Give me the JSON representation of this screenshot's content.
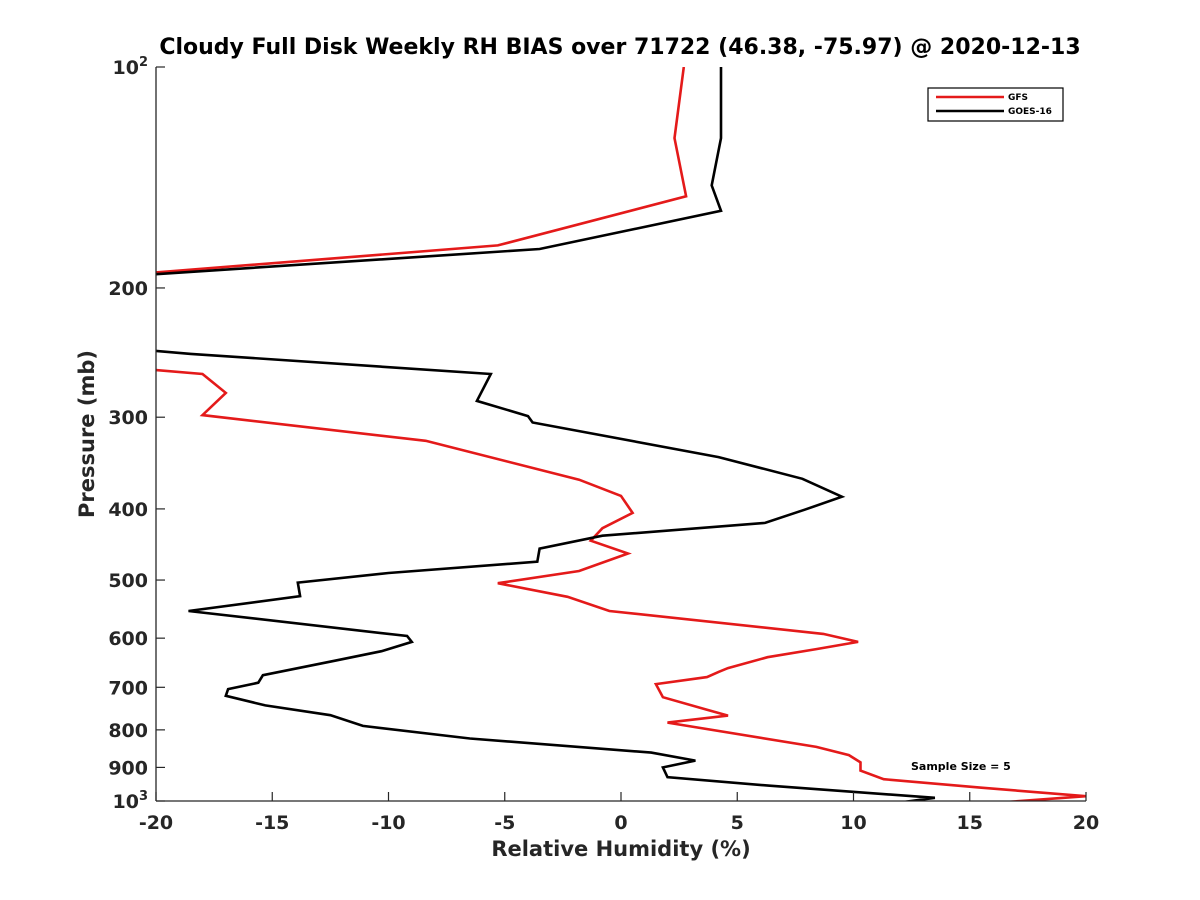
{
  "chart_data": {
    "type": "line",
    "title": "Cloudy Full Disk Weekly RH BIAS over 71722 (46.38, -75.97) @ 2020-12-13",
    "xlabel": "Relative Humidity (%)",
    "ylabel": "Pressure (mb)",
    "xlim": [
      -20,
      20
    ],
    "ylim": [
      100,
      1000
    ],
    "yscale": "log",
    "y_reversed": true,
    "x_ticks": [
      "-20",
      "-15",
      "-10",
      "-5",
      "0",
      "5",
      "10",
      "15",
      "20"
    ],
    "y_ticks": [
      {
        "value": 100,
        "label": "10",
        "sup": "2"
      },
      {
        "value": 200,
        "label": "200",
        "sup": ""
      },
      {
        "value": 300,
        "label": "300",
        "sup": ""
      },
      {
        "value": 400,
        "label": "400",
        "sup": ""
      },
      {
        "value": 500,
        "label": "500",
        "sup": ""
      },
      {
        "value": 600,
        "label": "600",
        "sup": ""
      },
      {
        "value": 700,
        "label": "700",
        "sup": ""
      },
      {
        "value": 800,
        "label": "800",
        "sup": ""
      },
      {
        "value": 900,
        "label": "900",
        "sup": ""
      },
      {
        "value": 1000,
        "label": "10",
        "sup": "3"
      }
    ],
    "grid": false,
    "legend_position": "top-right",
    "annotation": "Sample Size = 5",
    "series": [
      {
        "name": "GFS",
        "color": "#e41a1a",
        "points": [
          [
            2.7,
            100
          ],
          [
            2.3,
            125
          ],
          [
            2.8,
            150
          ],
          [
            -5.3,
            175
          ],
          [
            -20.5,
            191
          ],
          [
            null,
            null
          ],
          [
            -20.5,
            258
          ],
          [
            -18.0,
            262
          ],
          [
            -17.0,
            278
          ],
          [
            -18.0,
            298
          ],
          [
            -8.4,
            323
          ],
          [
            -1.8,
            365
          ],
          [
            0.0,
            384
          ],
          [
            0.5,
            405
          ],
          [
            -0.8,
            425
          ],
          [
            -1.3,
            442
          ],
          [
            0.3,
            460
          ],
          [
            -1.8,
            486
          ],
          [
            -5.3,
            505
          ],
          [
            -2.3,
            527
          ],
          [
            -0.5,
            551
          ],
          [
            8.7,
            592
          ],
          [
            10.2,
            607
          ],
          [
            8.4,
            621
          ],
          [
            6.3,
            637
          ],
          [
            4.6,
            659
          ],
          [
            4.2,
            667
          ],
          [
            3.7,
            678
          ],
          [
            1.5,
            693
          ],
          [
            1.8,
            722
          ],
          [
            3.7,
            751
          ],
          [
            4.6,
            765
          ],
          [
            2.0,
            782
          ],
          [
            8.4,
            844
          ],
          [
            9.8,
            866
          ],
          [
            10.3,
            886
          ],
          [
            10.3,
            909
          ],
          [
            11.3,
            934
          ],
          [
            15.5,
            959
          ],
          [
            20.0,
            985
          ],
          [
            13.5,
            1020
          ]
        ]
      },
      {
        "name": "GOES-16",
        "color": "#000000",
        "points": [
          [
            4.3,
            100
          ],
          [
            4.3,
            125
          ],
          [
            3.9,
            145
          ],
          [
            4.3,
            157
          ],
          [
            -3.5,
            177
          ],
          [
            -20.5,
            192
          ],
          [
            null,
            null
          ],
          [
            -20.5,
            243
          ],
          [
            -18.5,
            246
          ],
          [
            -5.6,
            262
          ],
          [
            -6.2,
            285
          ],
          [
            -4.0,
            299
          ],
          [
            -3.8,
            305
          ],
          [
            4.2,
            340
          ],
          [
            7.8,
            364
          ],
          [
            9.5,
            385
          ],
          [
            7.9,
            401
          ],
          [
            6.2,
            418
          ],
          [
            -0.8,
            435
          ],
          [
            -3.5,
            453
          ],
          [
            -3.6,
            472
          ],
          [
            -10.0,
            489
          ],
          [
            -13.9,
            504
          ],
          [
            -13.8,
            526
          ],
          [
            -18.6,
            551
          ],
          [
            -9.2,
            596
          ],
          [
            -9.0,
            607
          ],
          [
            -10.3,
            625
          ],
          [
            -12.3,
            644
          ],
          [
            -15.4,
            674
          ],
          [
            -15.6,
            690
          ],
          [
            -16.9,
            704
          ],
          [
            -17.0,
            719
          ],
          [
            -15.3,
            741
          ],
          [
            -12.5,
            764
          ],
          [
            -11.1,
            790
          ],
          [
            -6.5,
            822
          ],
          [
            1.3,
            859
          ],
          [
            3.2,
            881
          ],
          [
            1.8,
            900
          ],
          [
            2.0,
            928
          ],
          [
            6.4,
            953
          ],
          [
            13.5,
            990
          ],
          [
            8.5,
            1040
          ]
        ]
      }
    ]
  }
}
